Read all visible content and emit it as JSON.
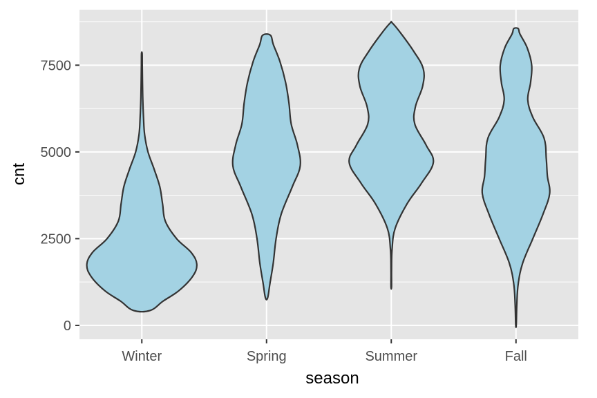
{
  "chart_data": {
    "type": "violin",
    "xlabel": "season",
    "ylabel": "cnt",
    "categories": [
      "Winter",
      "Spring",
      "Summer",
      "Fall"
    ],
    "y_ticks": [
      0,
      2500,
      5000,
      7500
    ],
    "y_tick_labels": [
      "0",
      "2500",
      "5000",
      "7500"
    ],
    "ylim": [
      -400,
      9100
    ],
    "grid": true,
    "colors": {
      "panel_background": "#e5e5e5",
      "grid": "#ffffff",
      "violin_fill": "#a3d2e3",
      "violin_stroke": "#333333"
    },
    "violins": [
      {
        "category": "Winter",
        "min": 431,
        "max": 7836,
        "profile": [
          [
            431,
            0.15
          ],
          [
            700,
            0.38
          ],
          [
            1000,
            0.66
          ],
          [
            1400,
            0.9
          ],
          [
            1750,
            0.98
          ],
          [
            2100,
            0.88
          ],
          [
            2500,
            0.62
          ],
          [
            3000,
            0.42
          ],
          [
            3500,
            0.37
          ],
          [
            4000,
            0.32
          ],
          [
            4500,
            0.22
          ],
          [
            5000,
            0.11
          ],
          [
            5500,
            0.05
          ],
          [
            6000,
            0.03
          ],
          [
            6500,
            0.018
          ],
          [
            7000,
            0.012
          ],
          [
            7500,
            0.008
          ],
          [
            7836,
            0.006
          ]
        ]
      },
      {
        "category": "Spring",
        "min": 795,
        "max": 8362,
        "profile": [
          [
            795,
            0.02
          ],
          [
            1200,
            0.06
          ],
          [
            1800,
            0.12
          ],
          [
            2500,
            0.17
          ],
          [
            3200,
            0.26
          ],
          [
            4000,
            0.46
          ],
          [
            4600,
            0.6
          ],
          [
            5200,
            0.55
          ],
          [
            5800,
            0.44
          ],
          [
            6400,
            0.4
          ],
          [
            7000,
            0.34
          ],
          [
            7600,
            0.24
          ],
          [
            8100,
            0.12
          ],
          [
            8362,
            0.07
          ]
        ]
      },
      {
        "category": "Summer",
        "min": 1115,
        "max": 8714,
        "profile": [
          [
            1115,
            0.005
          ],
          [
            1600,
            0.005
          ],
          [
            2200,
            0.015
          ],
          [
            2800,
            0.07
          ],
          [
            3500,
            0.28
          ],
          [
            4100,
            0.54
          ],
          [
            4700,
            0.75
          ],
          [
            5200,
            0.62
          ],
          [
            5800,
            0.42
          ],
          [
            6300,
            0.43
          ],
          [
            6900,
            0.56
          ],
          [
            7400,
            0.57
          ],
          [
            7900,
            0.4
          ],
          [
            8400,
            0.18
          ],
          [
            8714,
            0.02
          ]
        ]
      },
      {
        "category": "Fall",
        "min": 22,
        "max": 8555,
        "profile": [
          [
            22,
            0.005
          ],
          [
            600,
            0.015
          ],
          [
            1200,
            0.04
          ],
          [
            1800,
            0.12
          ],
          [
            2500,
            0.3
          ],
          [
            3200,
            0.48
          ],
          [
            3800,
            0.6
          ],
          [
            4300,
            0.56
          ],
          [
            4800,
            0.54
          ],
          [
            5400,
            0.5
          ],
          [
            6000,
            0.3
          ],
          [
            6500,
            0.21
          ],
          [
            7000,
            0.26
          ],
          [
            7500,
            0.28
          ],
          [
            8000,
            0.2
          ],
          [
            8400,
            0.07
          ],
          [
            8555,
            0.04
          ]
        ]
      }
    ]
  }
}
